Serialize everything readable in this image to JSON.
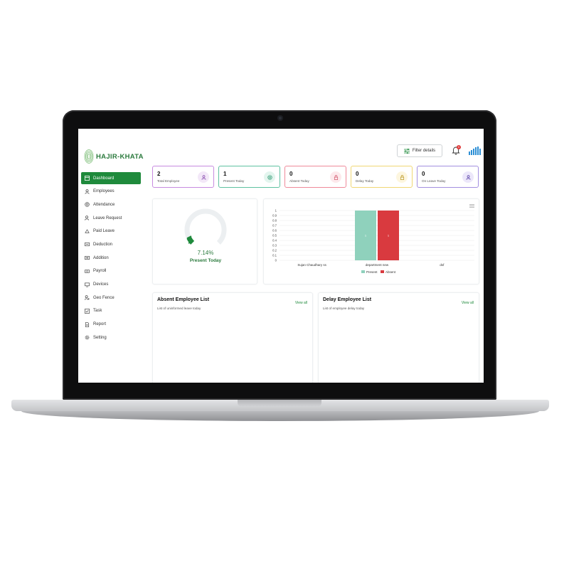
{
  "app": {
    "name": "HAJIR-KHATA",
    "brand_color": "#1f8a3c"
  },
  "sidebar": {
    "items": [
      {
        "label": "Dashboard",
        "icon": "dashboard-icon"
      },
      {
        "label": "Employees",
        "icon": "user-icon"
      },
      {
        "label": "Attendance",
        "icon": "fingerprint-icon"
      },
      {
        "label": "Leave Request",
        "icon": "user-leave-icon"
      },
      {
        "label": "Paid Leave",
        "icon": "paid-leave-icon"
      },
      {
        "label": "Deduction",
        "icon": "deduction-icon"
      },
      {
        "label": "Addition",
        "icon": "addition-icon"
      },
      {
        "label": "Payroll",
        "icon": "payroll-icon"
      },
      {
        "label": "Devices",
        "icon": "device-icon"
      },
      {
        "label": "Geo Fence",
        "icon": "geo-fence-icon"
      },
      {
        "label": "Task",
        "icon": "task-icon"
      },
      {
        "label": "Report",
        "icon": "report-icon"
      },
      {
        "label": "Setting",
        "icon": "gear-icon"
      }
    ]
  },
  "header": {
    "filter_label": "Filter details",
    "notification_count": "0"
  },
  "stats": [
    {
      "value": "2",
      "label": "Total Employee",
      "color": "#c78be0",
      "icon_bg": "#f3e8f8"
    },
    {
      "value": "1",
      "label": "Present Today",
      "color": "#5fc1a1",
      "icon_bg": "#e3f5ee"
    },
    {
      "value": "0",
      "label": "Absent Today",
      "color": "#ef8a9a",
      "icon_bg": "#fde9ec"
    },
    {
      "value": "0",
      "label": "Delay Today",
      "color": "#f1d774",
      "icon_bg": "#fdf6df"
    },
    {
      "value": "0",
      "label": "On Leave Today",
      "color": "#a38fe0",
      "icon_bg": "#ece7fa"
    }
  ],
  "present_gauge": {
    "percent": "7.14%",
    "label": "Present Today",
    "fraction": 0.0714
  },
  "chart_data": {
    "type": "bar",
    "categories": [
      "Sujan Chaudhary ss",
      "department new",
      "dsf"
    ],
    "series": [
      {
        "name": "Present",
        "color": "#8fd1bc",
        "values": [
          0,
          1,
          0
        ]
      },
      {
        "name": "Absent",
        "color": "#d93a3f",
        "values": [
          0,
          1,
          0
        ]
      }
    ],
    "yticks": [
      "0",
      "0.1",
      "0.2",
      "0.3",
      "0.4",
      "0.5",
      "0.6",
      "0.7",
      "0.8",
      "0.9",
      "1"
    ],
    "ylim": [
      0,
      1
    ],
    "legend": "bottom"
  },
  "absent_list": {
    "title": "Absent Employee List",
    "subtitle": "List of uninformed leave today",
    "view_all": "View all"
  },
  "delay_list": {
    "title": "Delay Employee List",
    "subtitle": "List of employee delay today",
    "view_all": "View all"
  }
}
